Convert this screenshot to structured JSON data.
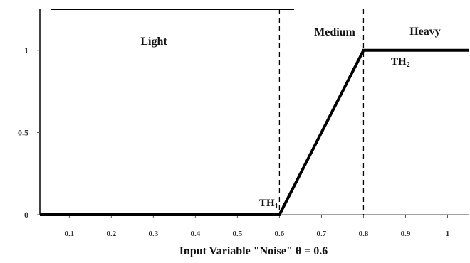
{
  "chart_data": {
    "type": "line",
    "title": "",
    "xlabel": "Input Variable \"Noise\" θ = 0.6",
    "ylabel": "",
    "xlim": [
      0.03,
      1.05
    ],
    "ylim": [
      0,
      1.25
    ],
    "x_ticks": [
      0.1,
      0.2,
      0.3,
      0.4,
      0.5,
      0.6,
      0.7,
      0.8,
      0.9,
      1
    ],
    "x_tick_labels": [
      "0.1",
      "0.2",
      "0.3",
      "0.4",
      "0.5",
      "0.6",
      "0.7",
      "0.8",
      "0.9",
      "1"
    ],
    "y_ticks": [
      0,
      0.5,
      1
    ],
    "y_tick_labels": [
      "0",
      "0.5",
      "1"
    ],
    "series": [
      {
        "x": [
          0.03,
          0.6,
          0.8,
          1.05
        ],
        "y": [
          0,
          0,
          1,
          1
        ]
      }
    ],
    "thresholds": [
      {
        "x": 0.6,
        "label": "TH",
        "subscript": "1"
      },
      {
        "x": 0.8,
        "label": "TH",
        "subscript": "2"
      }
    ],
    "regions": [
      {
        "label": "Light"
      },
      {
        "label": "Medium"
      },
      {
        "label": "Heavy"
      }
    ],
    "grid": false,
    "colors": {
      "line": "#000000",
      "axis": "#000000",
      "text": "#111111"
    }
  }
}
